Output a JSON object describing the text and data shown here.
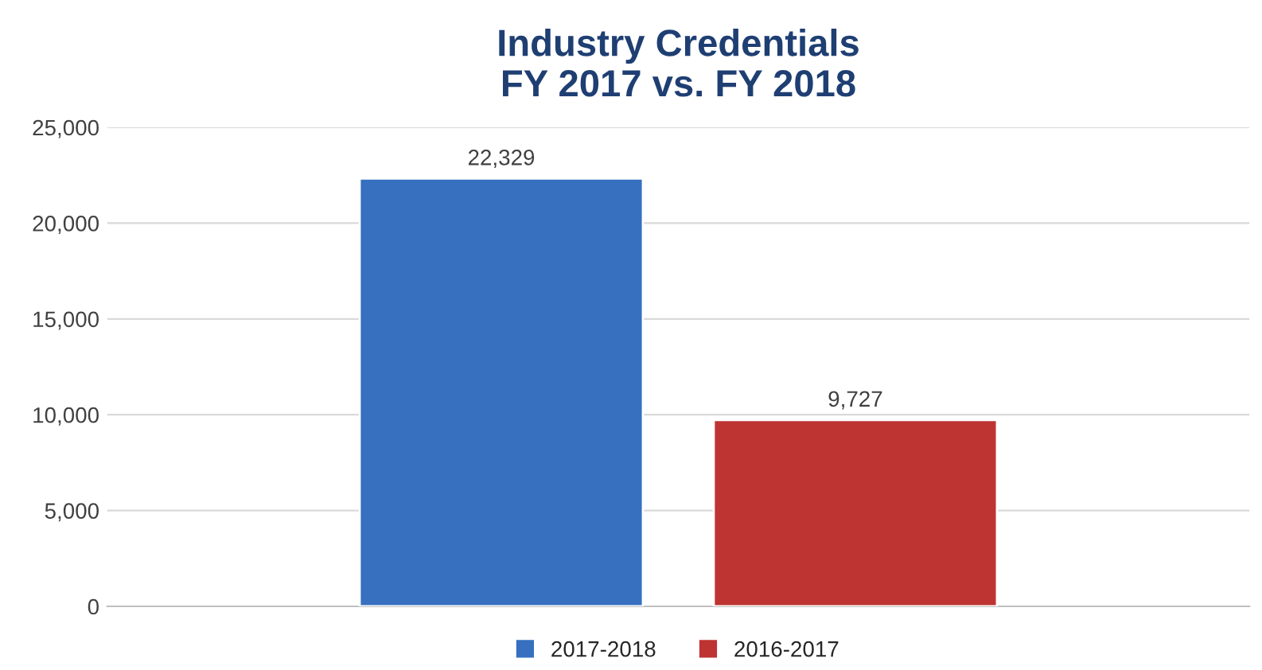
{
  "chart_data": {
    "type": "bar",
    "title": "Industry Credentials\nFY 2017 vs. FY 2018",
    "categories": [
      null
    ],
    "series": [
      {
        "name": "2017-2018",
        "color": "#3670bf",
        "values": [
          22329
        ],
        "value_labels": [
          "22,329"
        ]
      },
      {
        "name": "2016-2017",
        "color": "#bd3433",
        "values": [
          9727
        ],
        "value_labels": [
          "9,727"
        ]
      }
    ],
    "ylim": [
      0,
      25000
    ],
    "yticks": [
      {
        "value": 0,
        "label": "0"
      },
      {
        "value": 5000,
        "label": "5,000"
      },
      {
        "value": 10000,
        "label": "10,000"
      },
      {
        "value": 15000,
        "label": "15,000"
      },
      {
        "value": 20000,
        "label": "20,000"
      },
      {
        "value": 25000,
        "label": "25,000"
      }
    ],
    "grid": "y",
    "legend": "bottom"
  }
}
